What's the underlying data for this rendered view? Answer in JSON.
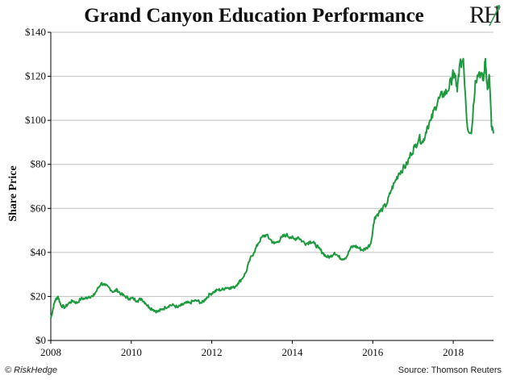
{
  "page": {
    "title": "Grand Canyon Education Performance",
    "logo_text": "RH",
    "footer_left": "© RiskHedge",
    "footer_right": "Source: Thomson Reuters"
  },
  "colors": {
    "line": "#1e9a3e",
    "grid": "#bfbfbf",
    "axis": "#000000",
    "logo_accent": "#2e9a48"
  },
  "chart_data": {
    "type": "line",
    "title": "Grand Canyon Education Performance",
    "xlabel": "",
    "ylabel": "Share Price",
    "xlim": [
      2008.0,
      2019.0
    ],
    "ylim": [
      0,
      140
    ],
    "x_ticks": [
      2008,
      2010,
      2012,
      2014,
      2016,
      2018
    ],
    "x_tick_labels": [
      "2008",
      "2010",
      "2012",
      "2014",
      "2016",
      "2018"
    ],
    "y_ticks": [
      0,
      20,
      40,
      60,
      80,
      100,
      120,
      140
    ],
    "y_tick_labels": [
      "$0",
      "$20",
      "$40",
      "$60",
      "$80",
      "$100",
      "$120",
      "$140"
    ],
    "grid": true,
    "series": [
      {
        "values_note": "x = year, y = share price ($)",
        "x": [
          2008.0,
          2008.05,
          2008.1,
          2008.18,
          2008.25,
          2008.35,
          2008.45,
          2008.55,
          2008.65,
          2008.75,
          2008.85,
          2008.95,
          2009.05,
          2009.15,
          2009.25,
          2009.35,
          2009.45,
          2009.55,
          2009.65,
          2009.75,
          2009.85,
          2009.95,
          2010.05,
          2010.15,
          2010.25,
          2010.35,
          2010.45,
          2010.55,
          2010.65,
          2010.75,
          2010.85,
          2010.95,
          2011.05,
          2011.15,
          2011.25,
          2011.35,
          2011.45,
          2011.55,
          2011.65,
          2011.75,
          2011.85,
          2011.95,
          2012.05,
          2012.15,
          2012.25,
          2012.35,
          2012.45,
          2012.55,
          2012.65,
          2012.75,
          2012.85,
          2012.95,
          2013.05,
          2013.15,
          2013.25,
          2013.35,
          2013.45,
          2013.55,
          2013.65,
          2013.75,
          2013.85,
          2013.95,
          2014.05,
          2014.15,
          2014.25,
          2014.35,
          2014.45,
          2014.55,
          2014.65,
          2014.75,
          2014.85,
          2014.95,
          2015.05,
          2015.15,
          2015.25,
          2015.35,
          2015.45,
          2015.55,
          2015.65,
          2015.75,
          2015.85,
          2015.95,
          2016.05,
          2016.15,
          2016.25,
          2016.35,
          2016.45,
          2016.55,
          2016.65,
          2016.75,
          2016.85,
          2016.95,
          2017.05,
          2017.15,
          2017.25,
          2017.35,
          2017.45,
          2017.55,
          2017.65,
          2017.75,
          2017.85,
          2017.95,
          2018.0,
          2018.05,
          2018.1,
          2018.15,
          2018.25,
          2018.35,
          2018.45,
          2018.55,
          2018.65,
          2018.75,
          2018.8,
          2018.85,
          2018.9,
          2018.95,
          2019.0
        ],
        "y": [
          10,
          14,
          18,
          20,
          16,
          15,
          17,
          18,
          17,
          19,
          19,
          20,
          20,
          23,
          26,
          25,
          24,
          22,
          23,
          21,
          20,
          19,
          19,
          18,
          19,
          17,
          15,
          14,
          13,
          14,
          15,
          16,
          16,
          15,
          16,
          17,
          17,
          18,
          18,
          17,
          19,
          21,
          22,
          23,
          23,
          24,
          24,
          24,
          26,
          28,
          31,
          37,
          40,
          44,
          47,
          48,
          46,
          44,
          45,
          47,
          48,
          47,
          46,
          47,
          45,
          44,
          45,
          44,
          42,
          40,
          38,
          38,
          40,
          38,
          37,
          38,
          42,
          43,
          42,
          41,
          42,
          44,
          56,
          58,
          60,
          62,
          68,
          72,
          76,
          78,
          80,
          85,
          88,
          92,
          90,
          97,
          100,
          106,
          110,
          112,
          113,
          118,
          121,
          120,
          113,
          124,
          128,
          97,
          94,
          118,
          122,
          118,
          128,
          114,
          120,
          97,
          94
        ]
      }
    ]
  }
}
